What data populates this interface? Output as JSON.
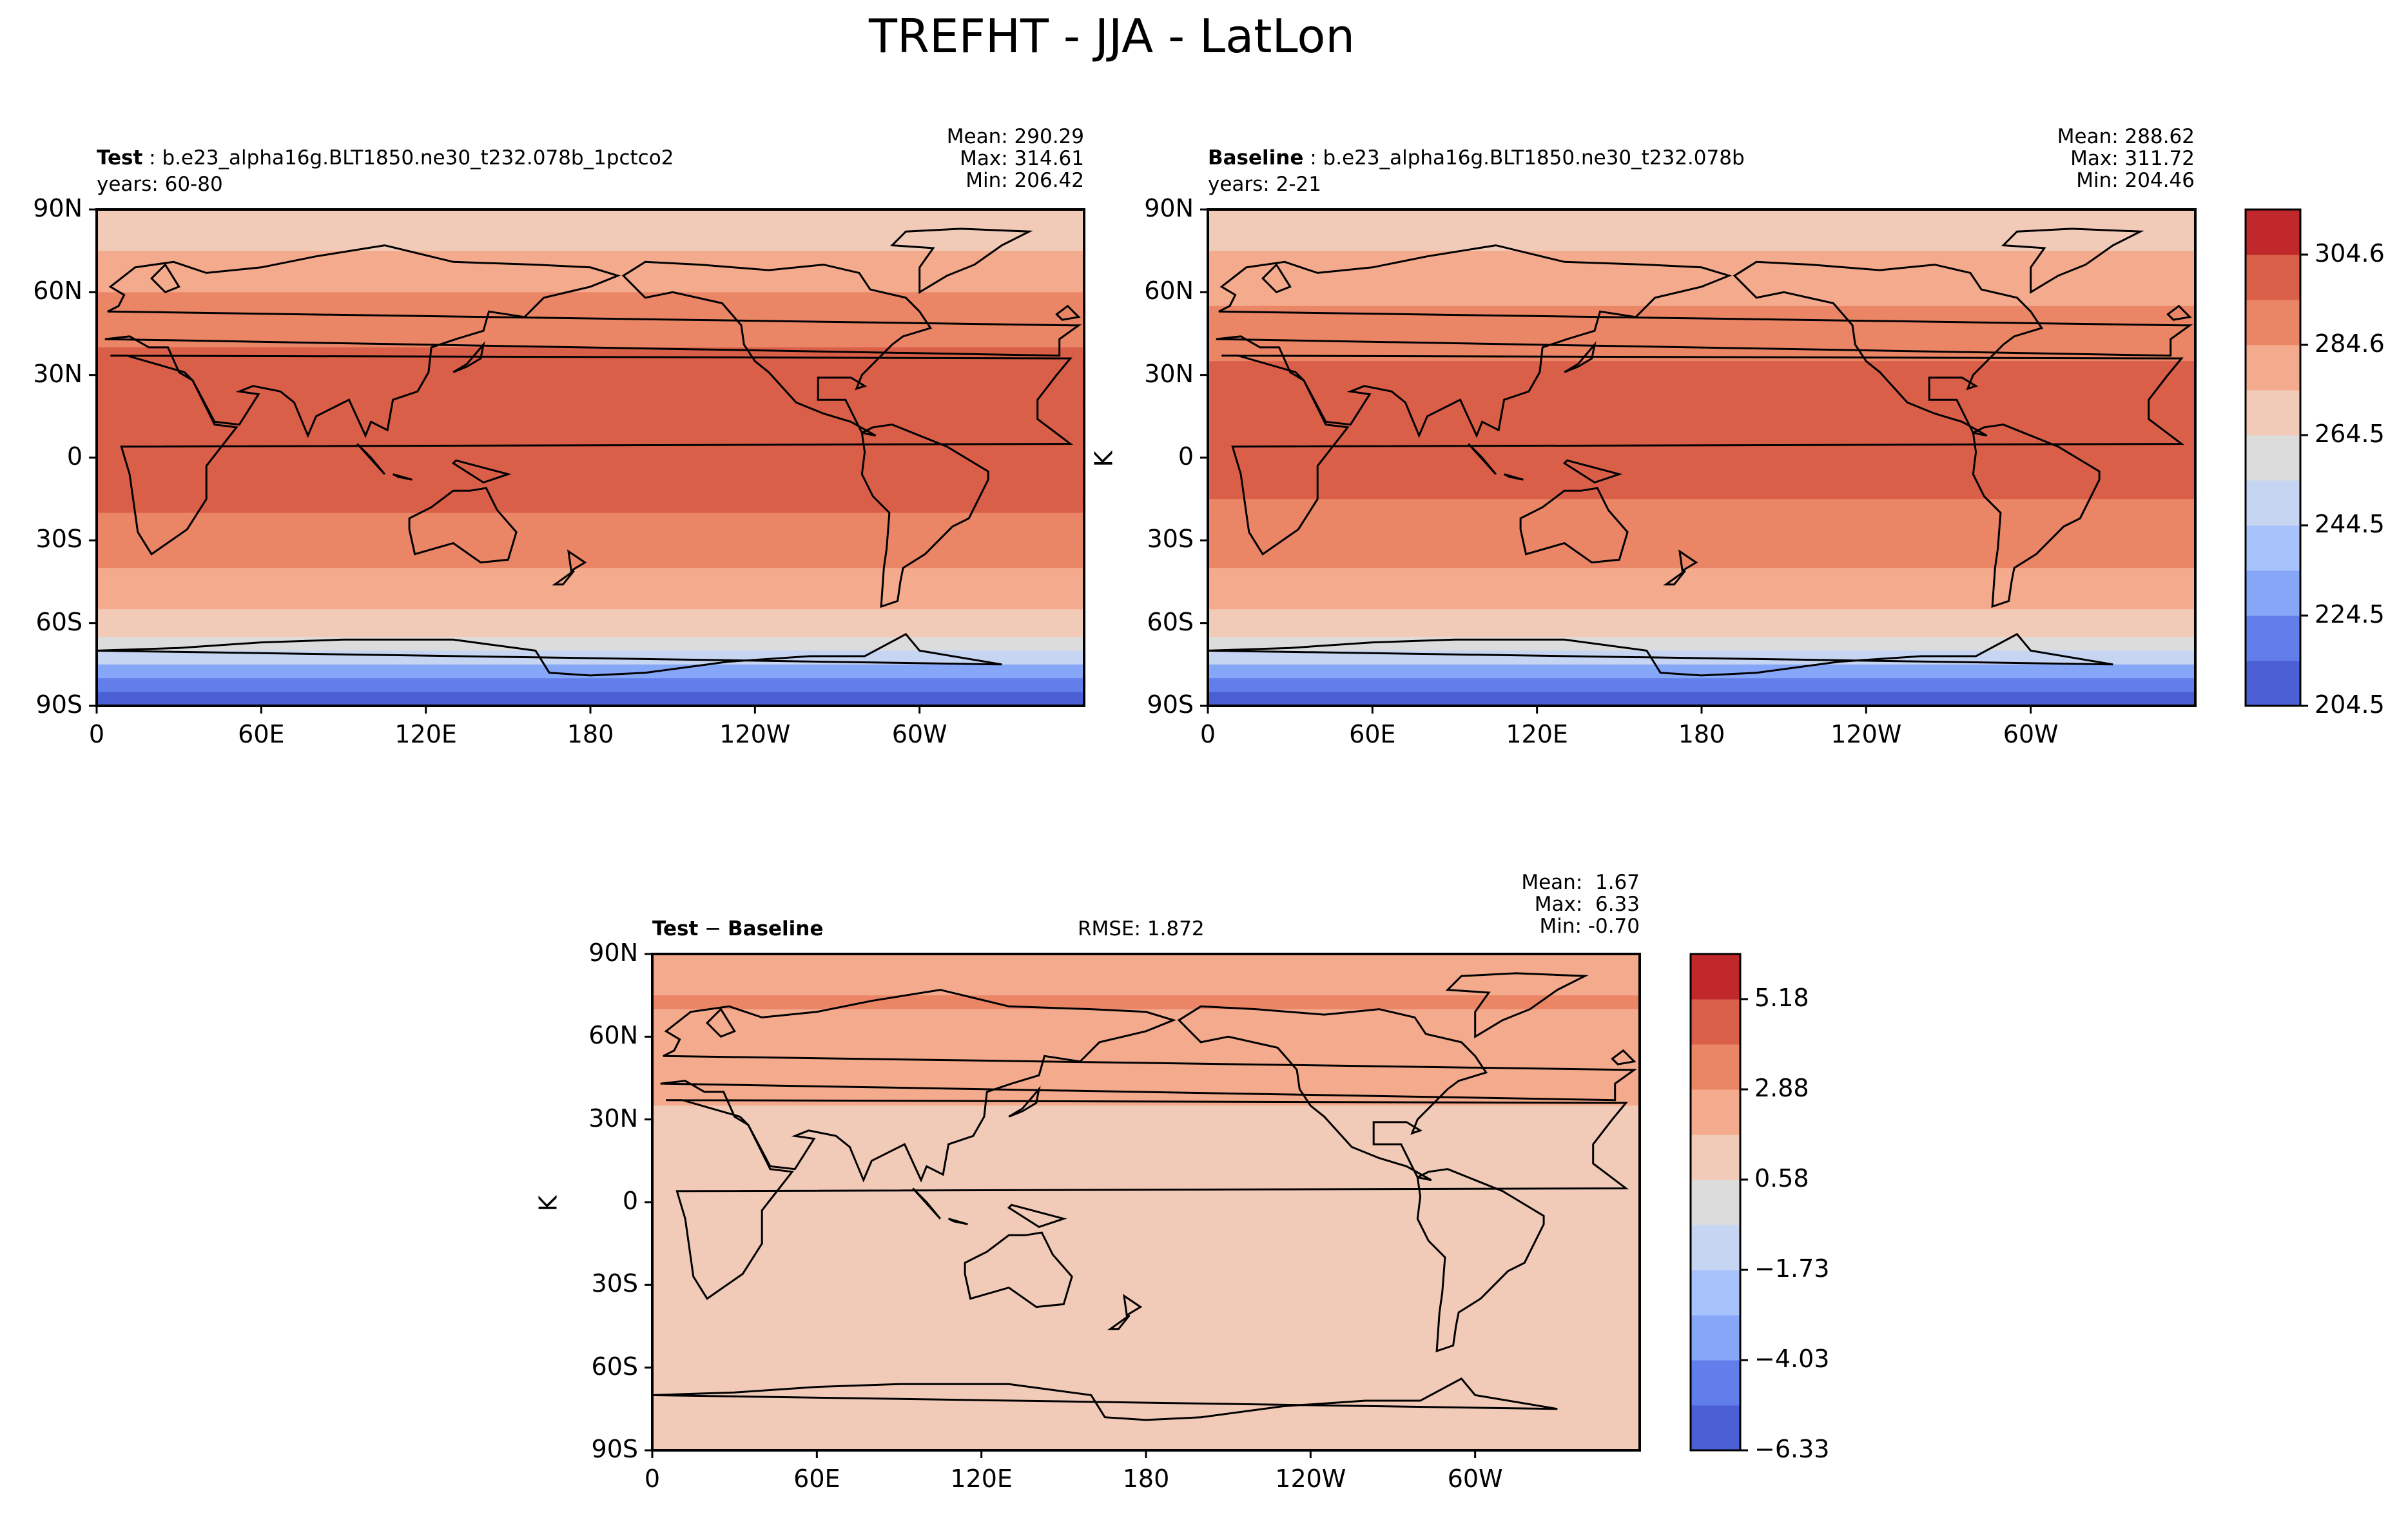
{
  "figure": {
    "title": "TREFHT - JJA - LatLon"
  },
  "chart_data": [
    {
      "type": "heatmap",
      "panel": "test",
      "label": "Test",
      "case": "b.e23_alpha16g.BLT1850.ne30_t232.078b_1pctco2",
      "years": "years: 60-80",
      "stats": {
        "mean": "Mean: 290.29",
        "max": "Max: 314.61",
        "min": "Min: 206.42"
      },
      "xticks": [
        "0",
        "60E",
        "120E",
        "180",
        "120W",
        "60W"
      ],
      "yticks": [
        "90N",
        "60N",
        "30N",
        "0",
        "30S",
        "60S",
        "90S"
      ],
      "zonal_profile_K": [
        {
          "lat": 90,
          "value": 265
        },
        {
          "lat": 75,
          "value": 275
        },
        {
          "lat": 60,
          "value": 285
        },
        {
          "lat": 45,
          "value": 293
        },
        {
          "lat": 30,
          "value": 298
        },
        {
          "lat": 15,
          "value": 300
        },
        {
          "lat": 0,
          "value": 299
        },
        {
          "lat": -15,
          "value": 296
        },
        {
          "lat": -30,
          "value": 291
        },
        {
          "lat": -45,
          "value": 283
        },
        {
          "lat": -60,
          "value": 272
        },
        {
          "lat": -70,
          "value": 255
        },
        {
          "lat": -80,
          "value": 225
        },
        {
          "lat": -90,
          "value": 210
        }
      ]
    },
    {
      "type": "heatmap",
      "panel": "baseline",
      "label": "Baseline",
      "case": "b.e23_alpha16g.BLT1850.ne30_t232.078b",
      "years": "years: 2-21",
      "ylabel": "K",
      "stats": {
        "mean": "Mean: 288.62",
        "max": "Max: 311.72",
        "min": "Min: 204.46"
      },
      "xticks": [
        "0",
        "60E",
        "120E",
        "180",
        "120W",
        "60W"
      ],
      "yticks": [
        "90N",
        "60N",
        "30N",
        "0",
        "30S",
        "60S",
        "90S"
      ],
      "colorbar": {
        "ticks": [
          "304.6",
          "284.6",
          "264.5",
          "244.5",
          "224.5",
          "204.5"
        ],
        "range": [
          204.5,
          314.6
        ]
      },
      "zonal_profile_K": [
        {
          "lat": 90,
          "value": 263
        },
        {
          "lat": 75,
          "value": 273
        },
        {
          "lat": 60,
          "value": 283
        },
        {
          "lat": 45,
          "value": 291
        },
        {
          "lat": 30,
          "value": 296
        },
        {
          "lat": 15,
          "value": 298
        },
        {
          "lat": 0,
          "value": 298
        },
        {
          "lat": -15,
          "value": 295
        },
        {
          "lat": -30,
          "value": 290
        },
        {
          "lat": -45,
          "value": 282
        },
        {
          "lat": -60,
          "value": 271
        },
        {
          "lat": -70,
          "value": 253
        },
        {
          "lat": -80,
          "value": 223
        },
        {
          "lat": -90,
          "value": 208
        }
      ]
    },
    {
      "type": "heatmap",
      "panel": "difference",
      "label_a": "Test",
      "label_sep": " − ",
      "label_b": "Baseline",
      "rmse": "RMSE: 1.872",
      "ylabel": "K",
      "stats": {
        "mean": "Mean:  1.67",
        "max": "Max:  6.33",
        "min": "Min: -0.70"
      },
      "xticks": [
        "0",
        "60E",
        "120E",
        "180",
        "120W",
        "60W"
      ],
      "yticks": [
        "90N",
        "60N",
        "30N",
        "0",
        "30S",
        "60S",
        "90S"
      ],
      "colorbar": {
        "ticks": [
          "5.18",
          "2.88",
          "0.58",
          "−1.73",
          "−4.03",
          "−6.33"
        ],
        "range": [
          -6.33,
          6.33
        ]
      },
      "zonal_profile_K": [
        {
          "lat": 90,
          "value": 1.5
        },
        {
          "lat": 75,
          "value": 3.0
        },
        {
          "lat": 60,
          "value": 2.6
        },
        {
          "lat": 45,
          "value": 1.9
        },
        {
          "lat": 30,
          "value": 1.6
        },
        {
          "lat": 15,
          "value": 1.4
        },
        {
          "lat": 0,
          "value": 1.4
        },
        {
          "lat": -15,
          "value": 1.5
        },
        {
          "lat": -30,
          "value": 1.5
        },
        {
          "lat": -45,
          "value": 1.5
        },
        {
          "lat": -60,
          "value": 1.3
        },
        {
          "lat": -70,
          "value": 1.2
        },
        {
          "lat": -80,
          "value": 1.5
        },
        {
          "lat": -90,
          "value": 1.5
        }
      ]
    }
  ],
  "colors": {
    "levels": [
      "#4a5fd4",
      "#627eea",
      "#86a6f8",
      "#a8c3fc",
      "#c6d6f2",
      "#dcdcdc",
      "#f1cbb8",
      "#f4aa8c",
      "#ea8566",
      "#d95f48",
      "#c0282c"
    ]
  }
}
